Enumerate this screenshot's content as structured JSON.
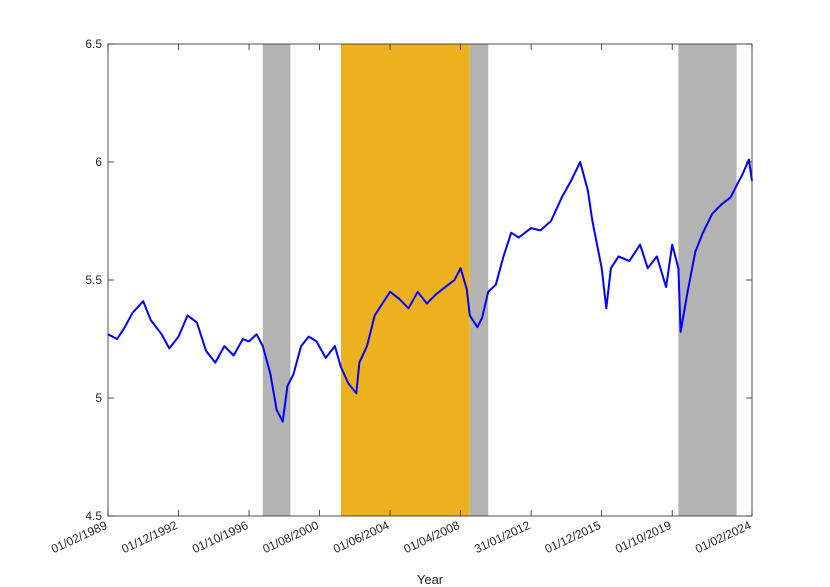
{
  "chart_data": {
    "type": "line",
    "title": "",
    "xlabel": "Year",
    "ylabel": "",
    "ylim": [
      4.5,
      6.5
    ],
    "yticks": [
      "4.5",
      "5",
      "5.5",
      "6",
      "6.5"
    ],
    "xlim": [
      "1989-02-01",
      "2024-02-01"
    ],
    "xticks": [
      {
        "date": "1989-02-01",
        "label": "01/02/1989"
      },
      {
        "date": "1992-12-01",
        "label": "01/12/1992"
      },
      {
        "date": "1996-10-01",
        "label": "01/10/1996"
      },
      {
        "date": "2000-08-01",
        "label": "01/08/2000"
      },
      {
        "date": "2004-06-01",
        "label": "01/06/2004"
      },
      {
        "date": "2008-04-01",
        "label": "01/04/2008"
      },
      {
        "date": "2012-01-31",
        "label": "31/01/2012"
      },
      {
        "date": "2015-12-01",
        "label": "01/12/2015"
      },
      {
        "date": "2019-10-01",
        "label": "01/10/2019"
      },
      {
        "date": "2024-02-01",
        "label": "01/02/2024"
      }
    ],
    "grid": false,
    "legend": "none",
    "shaded_periods": [
      {
        "start": "1997-07-01",
        "end": "1999-01-01",
        "color": "#b3b3b3"
      },
      {
        "start": "2001-10-01",
        "end": "2008-10-01",
        "color": "#edb120"
      },
      {
        "start": "2008-10-01",
        "end": "2009-10-01",
        "color": "#b3b3b3"
      },
      {
        "start": "2020-02-01",
        "end": "2023-04-01",
        "color": "#b3b3b3"
      }
    ],
    "series": [
      {
        "color": "#0000ff",
        "x": [
          "1989-02-01",
          "1989-08-01",
          "1990-01-01",
          "1990-06-01",
          "1991-01-01",
          "1991-06-01",
          "1992-01-01",
          "1992-06-01",
          "1992-12-01",
          "1993-06-01",
          "1993-12-01",
          "1994-06-01",
          "1994-12-01",
          "1995-06-01",
          "1995-12-01",
          "1996-06-01",
          "1996-10-01",
          "1997-03-01",
          "1997-07-01",
          "1997-12-01",
          "1998-04-01",
          "1998-08-01",
          "1998-11-01",
          "1999-03-01",
          "1999-08-01",
          "2000-01-01",
          "2000-06-01",
          "2000-12-01",
          "2001-06-01",
          "2001-10-01",
          "2002-03-01",
          "2002-08-01",
          "2002-10-01",
          "2003-03-01",
          "2003-08-01",
          "2004-01-01",
          "2004-06-01",
          "2004-12-01",
          "2005-06-01",
          "2005-12-01",
          "2006-06-01",
          "2006-12-01",
          "2007-06-01",
          "2007-12-01",
          "2008-04-01",
          "2008-08-01",
          "2008-10-01",
          "2009-03-01",
          "2009-06-01",
          "2009-10-01",
          "2010-03-01",
          "2010-08-01",
          "2011-01-01",
          "2011-06-01",
          "2012-01-31",
          "2012-08-01",
          "2013-03-01",
          "2013-10-01",
          "2014-04-01",
          "2014-10-01",
          "2015-03-01",
          "2015-06-01",
          "2015-12-01",
          "2016-03-01",
          "2016-06-01",
          "2016-11-01",
          "2017-06-01",
          "2018-01-01",
          "2018-06-01",
          "2018-12-01",
          "2019-06-01",
          "2019-10-01",
          "2020-02-01",
          "2020-03-15",
          "2020-08-01",
          "2021-01-01",
          "2021-06-01",
          "2021-12-01",
          "2022-06-01",
          "2022-12-01",
          "2023-04-01",
          "2023-08-01",
          "2023-12-01",
          "2024-02-01"
        ],
        "y": [
          5.27,
          5.25,
          5.3,
          5.36,
          5.41,
          5.33,
          5.27,
          5.21,
          5.26,
          5.35,
          5.32,
          5.2,
          5.15,
          5.22,
          5.18,
          5.25,
          5.24,
          5.27,
          5.22,
          5.1,
          4.95,
          4.9,
          5.05,
          5.1,
          5.22,
          5.26,
          5.24,
          5.17,
          5.22,
          5.13,
          5.06,
          5.02,
          5.15,
          5.22,
          5.35,
          5.4,
          5.45,
          5.42,
          5.38,
          5.45,
          5.4,
          5.44,
          5.47,
          5.5,
          5.55,
          5.46,
          5.35,
          5.3,
          5.34,
          5.45,
          5.48,
          5.6,
          5.7,
          5.68,
          5.72,
          5.71,
          5.75,
          5.85,
          5.92,
          6.0,
          5.88,
          5.75,
          5.55,
          5.38,
          5.55,
          5.6,
          5.58,
          5.65,
          5.55,
          5.6,
          5.47,
          5.65,
          5.55,
          5.28,
          5.45,
          5.62,
          5.7,
          5.78,
          5.82,
          5.85,
          5.9,
          5.95,
          6.01,
          5.92
        ]
      }
    ]
  }
}
